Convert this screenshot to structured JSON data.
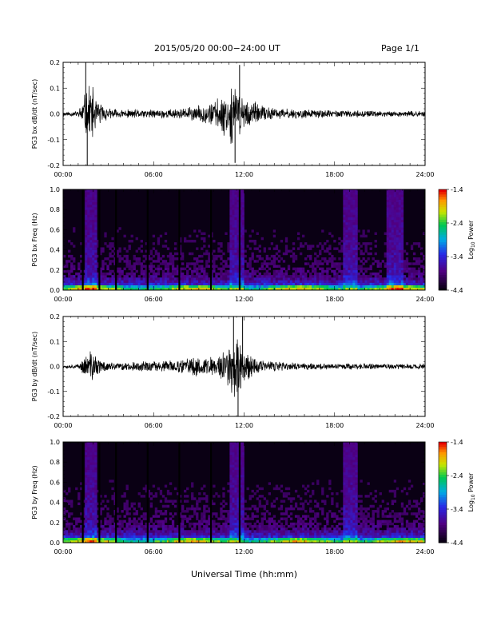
{
  "header": {
    "title": "2015/05/20  00:00−24:00 UT",
    "page": "Page 1/1"
  },
  "xlabel": "Universal Time (hh:mm)",
  "colorbar": {
    "label_base": "Log",
    "label_sub": "10",
    "label_rest": " Power",
    "ticks": [
      "-1.4",
      "-2.4",
      "-3.4",
      "-4.4"
    ]
  },
  "chart_data": [
    {
      "type": "line",
      "id": "bx_wave",
      "ylabel": "PG3 bx dB/dt (nT/sec)",
      "ylim": [
        -0.2,
        0.2
      ],
      "yticks": [
        "0.2",
        "0.1",
        "0.0",
        "-0.1",
        "-0.2"
      ],
      "xlim": [
        "00:00",
        "24:00"
      ],
      "xticks": [
        "00:00",
        "06:00",
        "12:00",
        "18:00",
        "24:00"
      ],
      "envelope": {
        "hours": [
          0,
          1.0,
          1.5,
          1.8,
          2.2,
          3.0,
          4.0,
          6.0,
          8.0,
          9.0,
          10.0,
          10.8,
          11.3,
          11.8,
          12.5,
          13.5,
          15.0,
          18.0,
          21.0,
          24.0
        ],
        "amplitude": [
          0.008,
          0.01,
          0.08,
          0.12,
          0.05,
          0.02,
          0.015,
          0.015,
          0.02,
          0.03,
          0.045,
          0.08,
          0.11,
          0.07,
          0.045,
          0.025,
          0.018,
          0.013,
          0.01,
          0.01
        ]
      },
      "spikes": [
        [
          1.5,
          0.2
        ],
        [
          1.6,
          -0.21
        ],
        [
          11.4,
          -0.19
        ],
        [
          11.7,
          0.19
        ]
      ]
    },
    {
      "type": "heatmap",
      "id": "bx_spec",
      "ylabel": "PG3 bx Freq (Hz)",
      "ylim": [
        0.0,
        1.0
      ],
      "yticks": [
        "1.0",
        "0.8",
        "0.6",
        "0.4",
        "0.2",
        "0.0"
      ],
      "xticks": [
        "00:00",
        "06:00",
        "12:00",
        "18:00",
        "24:00"
      ],
      "zlim": [
        -4.4,
        -1.4
      ],
      "bright_bands": [
        [
          1.5,
          2.3
        ],
        [
          11.0,
          12.0
        ],
        [
          18.5,
          19.5
        ],
        [
          21.5,
          22.5
        ]
      ],
      "gaps": [
        1.3,
        2.4,
        3.5,
        5.6,
        7.7,
        9.8,
        11.7
      ]
    },
    {
      "type": "line",
      "id": "by_wave",
      "ylabel": "PG3 by dB/dt (nT/sec)",
      "ylim": [
        -0.2,
        0.2
      ],
      "yticks": [
        "0.2",
        "0.1",
        "0.0",
        "-0.1",
        "-0.2"
      ],
      "xlim": [
        "00:00",
        "24:00"
      ],
      "xticks": [
        "00:00",
        "06:00",
        "12:00",
        "18:00",
        "24:00"
      ],
      "envelope": {
        "hours": [
          0,
          1.0,
          1.5,
          1.9,
          2.4,
          3.0,
          4.0,
          6.0,
          8.0,
          8.8,
          9.5,
          10.3,
          11.0,
          11.5,
          12.0,
          12.6,
          13.5,
          15.0,
          18.0,
          21.0,
          24.0
        ],
        "amplitude": [
          0.006,
          0.008,
          0.04,
          0.06,
          0.03,
          0.015,
          0.015,
          0.02,
          0.025,
          0.04,
          0.035,
          0.04,
          0.09,
          0.12,
          0.08,
          0.04,
          0.02,
          0.015,
          0.012,
          0.01,
          0.01
        ]
      },
      "spikes": [
        [
          11.3,
          0.2
        ],
        [
          11.6,
          -0.2
        ],
        [
          11.9,
          0.2
        ]
      ]
    },
    {
      "type": "heatmap",
      "id": "by_spec",
      "ylabel": "PG3 by Freq (Hz)",
      "ylim": [
        0.0,
        1.0
      ],
      "yticks": [
        "1.0",
        "0.8",
        "0.6",
        "0.4",
        "0.2",
        "0.0"
      ],
      "xticks": [
        "00:00",
        "06:00",
        "12:00",
        "18:00",
        "24:00"
      ],
      "zlim": [
        -4.4,
        -1.4
      ],
      "bright_bands": [
        [
          1.5,
          2.3
        ],
        [
          11.0,
          12.0
        ],
        [
          18.5,
          19.5
        ]
      ],
      "gaps": [
        1.3,
        2.4,
        3.5,
        5.6,
        7.7,
        9.8,
        11.7
      ]
    }
  ]
}
